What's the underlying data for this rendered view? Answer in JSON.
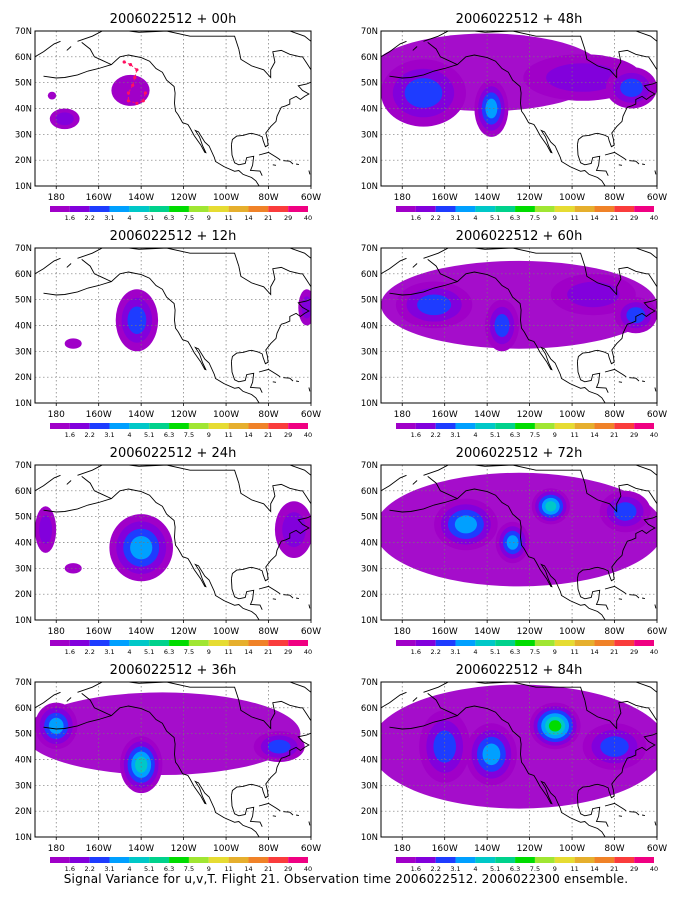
{
  "figure": {
    "caption": "Signal Variance for u,v,T. Flight 21. Observation time 2006022512. 2006022300 ensemble.",
    "x_ticks": [
      "180",
      "160W",
      "140W",
      "120W",
      "100W",
      "80W",
      "60W"
    ],
    "y_ticks": [
      "10N",
      "20N",
      "30N",
      "40N",
      "50N",
      "60N",
      "70N"
    ],
    "colorbar_labels": [
      "1.6",
      "2.2",
      "3.1",
      "4",
      "5.1",
      "6.3",
      "7.5",
      "9",
      "11",
      "14",
      "21",
      "29",
      "40"
    ],
    "colorbar_colors": [
      "#a000c8",
      "#8200dc",
      "#1e3cff",
      "#00a0ff",
      "#00c8c8",
      "#00d28c",
      "#00dc00",
      "#a0e632",
      "#e6dc32",
      "#e6af2d",
      "#f08228",
      "#fa3c3c",
      "#f00082"
    ],
    "panels": [
      {
        "title": "2006022512 + 00h"
      },
      {
        "title": "2006022512 + 48h"
      },
      {
        "title": "2006022512 + 12h"
      },
      {
        "title": "2006022512 + 60h"
      },
      {
        "title": "2006022512 + 24h"
      },
      {
        "title": "2006022512 + 72h"
      },
      {
        "title": "2006022512 + 36h"
      },
      {
        "title": "2006022512 + 84h"
      }
    ],
    "overlay_label": "flight-track"
  }
}
